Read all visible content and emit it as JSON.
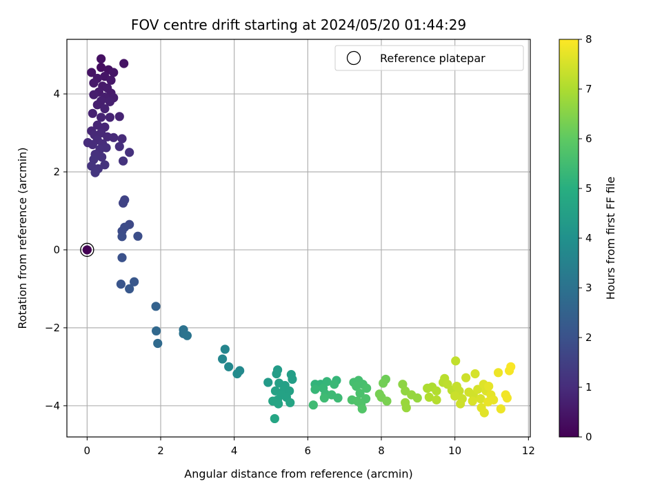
{
  "chart_data": {
    "type": "scatter",
    "title": "FOV centre drift starting at 2024/05/20 01:44:29",
    "xlabel": "Angular distance from reference (arcmin)",
    "ylabel": "Rotation from reference (arcmin)",
    "xlim": [
      -0.55,
      12.05
    ],
    "ylim": [
      -4.8,
      5.4
    ],
    "xticks": [
      0,
      2,
      4,
      6,
      8,
      10,
      12
    ],
    "yticks": [
      -4,
      -2,
      0,
      2,
      4
    ],
    "xtick_labels": [
      "0",
      "2",
      "4",
      "6",
      "8",
      "10",
      "12"
    ],
    "ytick_labels": [
      "−4",
      "−2",
      "0",
      "2",
      "4"
    ],
    "grid": true,
    "legend": {
      "position": "top-right",
      "entries": [
        "Reference platepar"
      ]
    },
    "colorbar": {
      "label": "Hours from first FF file",
      "range": [
        0,
        8
      ],
      "ticks": [
        0,
        1,
        2,
        3,
        4,
        5,
        6,
        7,
        8
      ],
      "tick_labels": [
        "0",
        "1",
        "2",
        "3",
        "4",
        "5",
        "6",
        "7",
        "8"
      ],
      "colormap": "viridis"
    },
    "reference_point": {
      "x": 0,
      "y": 0
    },
    "points": [
      {
        "x": 0.0,
        "y": 0.0,
        "h": 0.0
      },
      {
        "x": 0.38,
        "y": 4.9,
        "h": 0.35
      },
      {
        "x": 1.0,
        "y": 4.78,
        "h": 0.4
      },
      {
        "x": 0.38,
        "y": 4.68,
        "h": 0.3
      },
      {
        "x": 0.58,
        "y": 4.62,
        "h": 0.35
      },
      {
        "x": 0.12,
        "y": 4.55,
        "h": 0.4
      },
      {
        "x": 0.72,
        "y": 4.55,
        "h": 0.45
      },
      {
        "x": 0.48,
        "y": 4.45,
        "h": 0.45
      },
      {
        "x": 0.28,
        "y": 4.4,
        "h": 0.5
      },
      {
        "x": 0.65,
        "y": 4.35,
        "h": 0.5
      },
      {
        "x": 0.18,
        "y": 4.28,
        "h": 0.55
      },
      {
        "x": 0.42,
        "y": 4.2,
        "h": 0.55
      },
      {
        "x": 0.55,
        "y": 4.15,
        "h": 0.6
      },
      {
        "x": 0.32,
        "y": 4.05,
        "h": 0.6
      },
      {
        "x": 0.65,
        "y": 4.02,
        "h": 0.6
      },
      {
        "x": 0.18,
        "y": 3.98,
        "h": 0.65
      },
      {
        "x": 0.48,
        "y": 3.92,
        "h": 0.65
      },
      {
        "x": 0.72,
        "y": 3.9,
        "h": 0.65
      },
      {
        "x": 0.38,
        "y": 3.82,
        "h": 0.7
      },
      {
        "x": 0.62,
        "y": 3.8,
        "h": 0.7
      },
      {
        "x": 0.28,
        "y": 3.72,
        "h": 0.7
      },
      {
        "x": 0.48,
        "y": 3.62,
        "h": 0.75
      },
      {
        "x": 0.15,
        "y": 3.5,
        "h": 0.75
      },
      {
        "x": 0.88,
        "y": 3.42,
        "h": 0.8
      },
      {
        "x": 0.38,
        "y": 3.4,
        "h": 0.8
      },
      {
        "x": 0.62,
        "y": 3.4,
        "h": 0.8
      },
      {
        "x": 0.28,
        "y": 3.2,
        "h": 0.85
      },
      {
        "x": 0.48,
        "y": 3.15,
        "h": 0.85
      },
      {
        "x": 0.12,
        "y": 3.05,
        "h": 0.85
      },
      {
        "x": 0.38,
        "y": 3.0,
        "h": 0.9
      },
      {
        "x": 0.2,
        "y": 2.95,
        "h": 0.9
      },
      {
        "x": 0.55,
        "y": 2.9,
        "h": 0.9
      },
      {
        "x": 0.72,
        "y": 2.88,
        "h": 0.95
      },
      {
        "x": 0.95,
        "y": 2.85,
        "h": 0.95
      },
      {
        "x": 0.28,
        "y": 2.82,
        "h": 0.95
      },
      {
        "x": 0.02,
        "y": 2.75,
        "h": 1.0
      },
      {
        "x": 0.42,
        "y": 2.72,
        "h": 1.0
      },
      {
        "x": 0.15,
        "y": 2.7,
        "h": 1.0
      },
      {
        "x": 0.88,
        "y": 2.65,
        "h": 1.05
      },
      {
        "x": 0.52,
        "y": 2.62,
        "h": 1.05
      },
      {
        "x": 0.35,
        "y": 2.58,
        "h": 1.05
      },
      {
        "x": 1.15,
        "y": 2.5,
        "h": 1.1
      },
      {
        "x": 0.22,
        "y": 2.45,
        "h": 1.1
      },
      {
        "x": 0.4,
        "y": 2.38,
        "h": 1.1
      },
      {
        "x": 0.18,
        "y": 2.32,
        "h": 1.15
      },
      {
        "x": 0.98,
        "y": 2.28,
        "h": 1.15
      },
      {
        "x": 0.48,
        "y": 2.18,
        "h": 1.15
      },
      {
        "x": 0.12,
        "y": 2.15,
        "h": 1.2
      },
      {
        "x": 0.3,
        "y": 2.08,
        "h": 1.2
      },
      {
        "x": 0.22,
        "y": 1.98,
        "h": 1.25
      },
      {
        "x": 1.02,
        "y": 1.28,
        "h": 1.6
      },
      {
        "x": 0.98,
        "y": 1.2,
        "h": 1.6
      },
      {
        "x": 1.15,
        "y": 0.65,
        "h": 1.75
      },
      {
        "x": 1.02,
        "y": 0.58,
        "h": 1.8
      },
      {
        "x": 0.95,
        "y": 0.48,
        "h": 1.85
      },
      {
        "x": 1.38,
        "y": 0.35,
        "h": 1.9
      },
      {
        "x": 0.95,
        "y": 0.34,
        "h": 1.9
      },
      {
        "x": 0.95,
        "y": -0.2,
        "h": 2.0
      },
      {
        "x": 0.92,
        "y": -0.88,
        "h": 2.1
      },
      {
        "x": 1.28,
        "y": -0.82,
        "h": 2.15
      },
      {
        "x": 1.15,
        "y": -1.0,
        "h": 2.2
      },
      {
        "x": 1.87,
        "y": -1.45,
        "h": 2.5
      },
      {
        "x": 1.88,
        "y": -2.08,
        "h": 2.7
      },
      {
        "x": 1.92,
        "y": -2.4,
        "h": 2.75
      },
      {
        "x": 2.62,
        "y": -2.05,
        "h": 3.0
      },
      {
        "x": 2.62,
        "y": -2.15,
        "h": 3.0
      },
      {
        "x": 2.72,
        "y": -2.2,
        "h": 3.05
      },
      {
        "x": 3.75,
        "y": -2.55,
        "h": 3.6
      },
      {
        "x": 3.68,
        "y": -2.8,
        "h": 3.65
      },
      {
        "x": 3.85,
        "y": -3.0,
        "h": 3.7
      },
      {
        "x": 4.15,
        "y": -3.1,
        "h": 3.75
      },
      {
        "x": 4.08,
        "y": -3.18,
        "h": 3.8
      },
      {
        "x": 4.92,
        "y": -3.4,
        "h": 4.3
      },
      {
        "x": 5.18,
        "y": -3.08,
        "h": 4.35
      },
      {
        "x": 5.15,
        "y": -3.18,
        "h": 4.4
      },
      {
        "x": 5.55,
        "y": -3.2,
        "h": 4.45
      },
      {
        "x": 5.58,
        "y": -3.32,
        "h": 4.45
      },
      {
        "x": 5.22,
        "y": -3.42,
        "h": 4.5
      },
      {
        "x": 5.38,
        "y": -3.48,
        "h": 4.5
      },
      {
        "x": 5.12,
        "y": -3.62,
        "h": 4.55
      },
      {
        "x": 5.35,
        "y": -3.6,
        "h": 4.55
      },
      {
        "x": 5.5,
        "y": -3.62,
        "h": 4.55
      },
      {
        "x": 5.28,
        "y": -3.72,
        "h": 4.6
      },
      {
        "x": 5.42,
        "y": -3.78,
        "h": 4.6
      },
      {
        "x": 5.18,
        "y": -3.85,
        "h": 4.6
      },
      {
        "x": 5.05,
        "y": -3.88,
        "h": 4.65
      },
      {
        "x": 5.2,
        "y": -3.95,
        "h": 4.65
      },
      {
        "x": 5.52,
        "y": -3.92,
        "h": 4.65
      },
      {
        "x": 5.1,
        "y": -4.33,
        "h": 4.7
      },
      {
        "x": 6.2,
        "y": -3.45,
        "h": 5.2
      },
      {
        "x": 6.35,
        "y": -3.45,
        "h": 5.2
      },
      {
        "x": 6.52,
        "y": -3.38,
        "h": 5.25
      },
      {
        "x": 6.78,
        "y": -3.35,
        "h": 5.25
      },
      {
        "x": 6.2,
        "y": -3.58,
        "h": 5.3
      },
      {
        "x": 6.42,
        "y": -3.55,
        "h": 5.3
      },
      {
        "x": 6.72,
        "y": -3.45,
        "h": 5.35
      },
      {
        "x": 6.48,
        "y": -3.7,
        "h": 5.35
      },
      {
        "x": 6.65,
        "y": -3.72,
        "h": 5.4
      },
      {
        "x": 6.82,
        "y": -3.8,
        "h": 5.4
      },
      {
        "x": 6.45,
        "y": -3.8,
        "h": 5.45
      },
      {
        "x": 6.15,
        "y": -3.98,
        "h": 5.45
      },
      {
        "x": 7.25,
        "y": -3.4,
        "h": 5.55
      },
      {
        "x": 7.38,
        "y": -3.35,
        "h": 5.55
      },
      {
        "x": 7.5,
        "y": -3.45,
        "h": 5.6
      },
      {
        "x": 7.32,
        "y": -3.5,
        "h": 5.6
      },
      {
        "x": 7.6,
        "y": -3.55,
        "h": 5.65
      },
      {
        "x": 7.42,
        "y": -3.68,
        "h": 5.65
      },
      {
        "x": 7.2,
        "y": -3.85,
        "h": 5.7
      },
      {
        "x": 7.58,
        "y": -3.82,
        "h": 5.7
      },
      {
        "x": 7.45,
        "y": -3.95,
        "h": 5.75
      },
      {
        "x": 7.35,
        "y": -3.88,
        "h": 5.75
      },
      {
        "x": 7.48,
        "y": -4.08,
        "h": 5.8
      },
      {
        "x": 8.12,
        "y": -3.32,
        "h": 6.2
      },
      {
        "x": 8.05,
        "y": -3.42,
        "h": 6.25
      },
      {
        "x": 7.95,
        "y": -3.7,
        "h": 6.3
      },
      {
        "x": 8.0,
        "y": -3.78,
        "h": 6.3
      },
      {
        "x": 8.15,
        "y": -3.88,
        "h": 6.35
      },
      {
        "x": 8.58,
        "y": -3.45,
        "h": 6.6
      },
      {
        "x": 8.65,
        "y": -3.62,
        "h": 6.65
      },
      {
        "x": 8.82,
        "y": -3.72,
        "h": 6.7
      },
      {
        "x": 8.98,
        "y": -3.8,
        "h": 6.7
      },
      {
        "x": 8.65,
        "y": -3.92,
        "h": 6.75
      },
      {
        "x": 8.68,
        "y": -4.05,
        "h": 6.75
      },
      {
        "x": 9.25,
        "y": -3.55,
        "h": 7.0
      },
      {
        "x": 9.38,
        "y": -3.52,
        "h": 7.0
      },
      {
        "x": 9.5,
        "y": -3.62,
        "h": 7.05
      },
      {
        "x": 9.3,
        "y": -3.78,
        "h": 7.05
      },
      {
        "x": 9.5,
        "y": -3.85,
        "h": 7.1
      },
      {
        "x": 9.72,
        "y": -3.3,
        "h": 7.15
      },
      {
        "x": 9.68,
        "y": -3.4,
        "h": 7.15
      },
      {
        "x": 9.8,
        "y": -3.45,
        "h": 7.2
      },
      {
        "x": 9.92,
        "y": -3.6,
        "h": 7.2
      },
      {
        "x": 10.02,
        "y": -2.85,
        "h": 7.25
      },
      {
        "x": 10.05,
        "y": -3.5,
        "h": 7.3
      },
      {
        "x": 10.12,
        "y": -3.62,
        "h": 7.3
      },
      {
        "x": 10.0,
        "y": -3.75,
        "h": 7.35
      },
      {
        "x": 10.2,
        "y": -3.82,
        "h": 7.35
      },
      {
        "x": 10.3,
        "y": -3.28,
        "h": 7.4
      },
      {
        "x": 10.15,
        "y": -3.95,
        "h": 7.4
      },
      {
        "x": 10.38,
        "y": -3.65,
        "h": 7.45
      },
      {
        "x": 10.5,
        "y": -3.72,
        "h": 7.45
      },
      {
        "x": 10.55,
        "y": -3.18,
        "h": 7.5
      },
      {
        "x": 10.62,
        "y": -3.58,
        "h": 7.5
      },
      {
        "x": 10.7,
        "y": -3.82,
        "h": 7.55
      },
      {
        "x": 10.48,
        "y": -3.88,
        "h": 7.55
      },
      {
        "x": 10.78,
        "y": -3.45,
        "h": 7.6
      },
      {
        "x": 10.85,
        "y": -3.62,
        "h": 7.6
      },
      {
        "x": 10.72,
        "y": -4.05,
        "h": 7.65
      },
      {
        "x": 10.8,
        "y": -4.18,
        "h": 7.65
      },
      {
        "x": 10.92,
        "y": -3.5,
        "h": 7.7
      },
      {
        "x": 10.98,
        "y": -3.72,
        "h": 7.7
      },
      {
        "x": 11.05,
        "y": -3.85,
        "h": 7.75
      },
      {
        "x": 10.9,
        "y": -3.9,
        "h": 7.75
      },
      {
        "x": 11.18,
        "y": -3.15,
        "h": 7.8
      },
      {
        "x": 11.25,
        "y": -4.08,
        "h": 7.8
      },
      {
        "x": 11.38,
        "y": -3.72,
        "h": 7.85
      },
      {
        "x": 11.42,
        "y": -3.8,
        "h": 7.85
      },
      {
        "x": 11.48,
        "y": -3.1,
        "h": 7.9
      },
      {
        "x": 11.52,
        "y": -3.0,
        "h": 7.95
      }
    ]
  }
}
